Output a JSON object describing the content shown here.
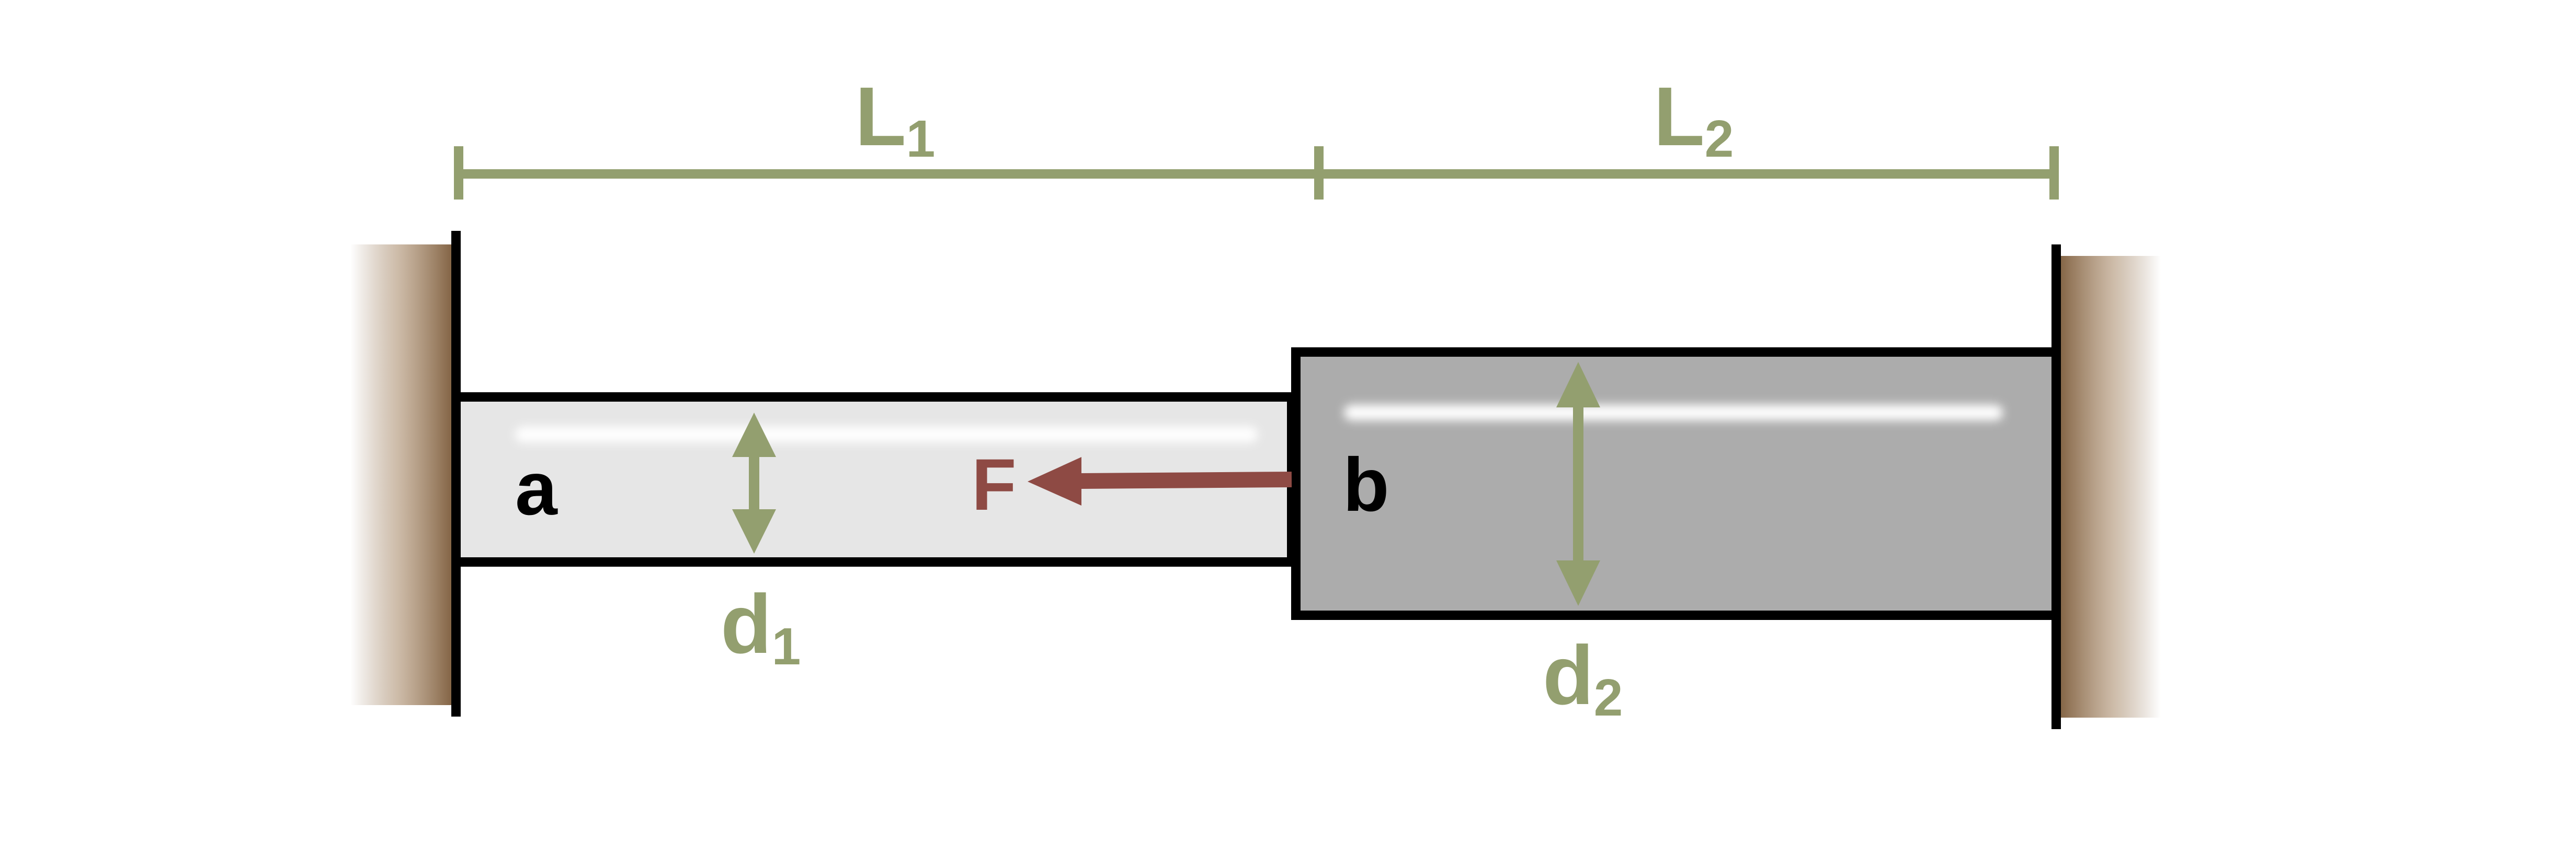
{
  "diagram": {
    "segments": [
      {
        "id": "a",
        "label": "a",
        "length_label_main": "L",
        "length_label_sub": "1",
        "diameter_label_main": "d",
        "diameter_label_sub": "1"
      },
      {
        "id": "b",
        "label": "b",
        "length_label_main": "L",
        "length_label_sub": "2",
        "diameter_label_main": "d",
        "diameter_label_sub": "2"
      }
    ],
    "force": {
      "label": "F",
      "direction": "left"
    },
    "supports": [
      "left-wall",
      "right-wall"
    ]
  },
  "colors": {
    "dimension": "#939f6f",
    "force": "#8e4a44",
    "rod_a_fill": "#e6e6e6",
    "rod_b_fill": "#acacac",
    "outline": "#000000",
    "wall": "#8a6a48"
  }
}
